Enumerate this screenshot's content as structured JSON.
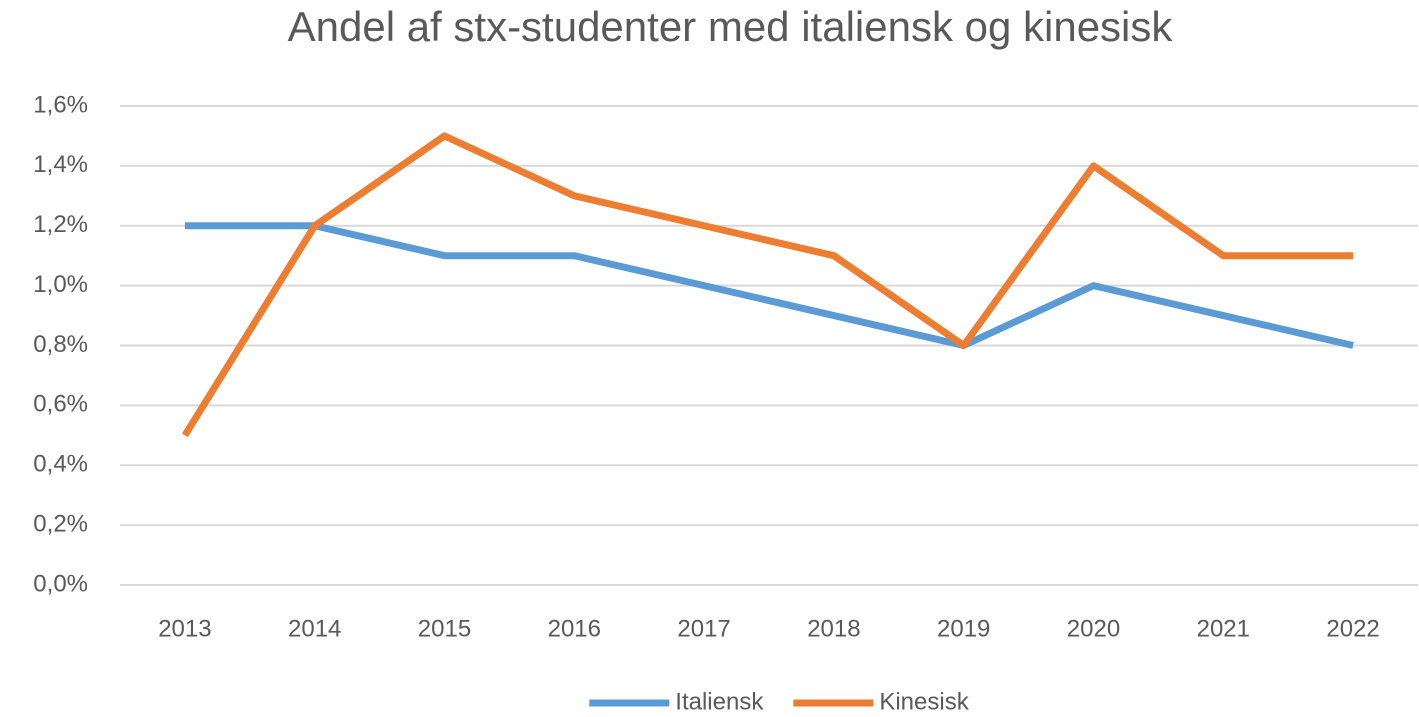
{
  "chart_data": {
    "type": "line",
    "title": "Andel af stx-studenter med italiensk og kinesisk",
    "categories": [
      "2013",
      "2014",
      "2015",
      "2016",
      "2017",
      "2018",
      "2019",
      "2020",
      "2021",
      "2022"
    ],
    "series": [
      {
        "name": "Italiensk",
        "color": "#5b9bd5",
        "values": [
          1.2,
          1.2,
          1.1,
          1.1,
          1.0,
          0.9,
          0.8,
          1.0,
          0.9,
          0.8
        ]
      },
      {
        "name": "Kinesisk",
        "color": "#ed7d31",
        "values": [
          0.5,
          1.2,
          1.5,
          1.3,
          1.2,
          1.1,
          0.8,
          1.4,
          1.1,
          1.1
        ]
      }
    ],
    "ylim": [
      0,
      1.6
    ],
    "yticks": [
      {
        "value": 0,
        "label": "0,0%"
      },
      {
        "value": 0.2,
        "label": "0,2%"
      },
      {
        "value": 0.4,
        "label": "0,4%"
      },
      {
        "value": 0.6,
        "label": "0,6%"
      },
      {
        "value": 0.8,
        "label": "0,8%"
      },
      {
        "value": 1.0,
        "label": "1,0%"
      },
      {
        "value": 1.2,
        "label": "1,2%"
      },
      {
        "value": 1.4,
        "label": "1,4%"
      },
      {
        "value": 1.6,
        "label": "1,6%"
      }
    ],
    "grid": true,
    "legend": "bottom"
  }
}
